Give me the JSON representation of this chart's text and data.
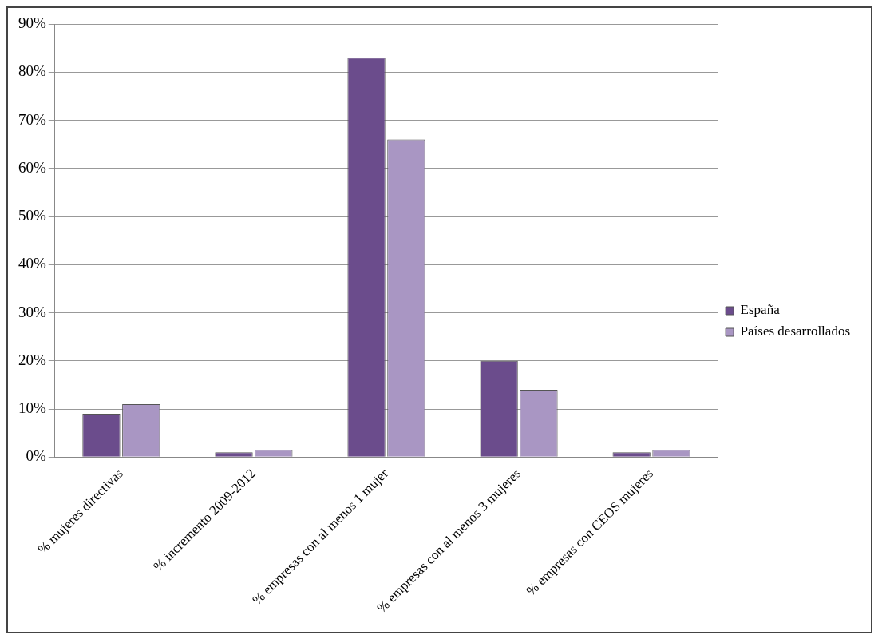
{
  "chart_data": {
    "type": "bar",
    "categories": [
      "% mujeres directivas",
      "% incremento 2009-2012",
      "% empresas con al menos 1 mujer",
      "% empresas con al menos 3 mujeres",
      "% empresas con CEOS mujeres"
    ],
    "series": [
      {
        "name": "España",
        "color": "#6b4c8c",
        "values": [
          9,
          1,
          83,
          20,
          1
        ]
      },
      {
        "name": "Países desarrollados",
        "color": "#a996c3",
        "values": [
          11,
          1.5,
          66,
          14,
          1.5
        ]
      }
    ],
    "ylim": [
      0,
      90
    ],
    "yticks": [
      {
        "value": 0,
        "label": "0%"
      },
      {
        "value": 10,
        "label": "10%"
      },
      {
        "value": 20,
        "label": "20%"
      },
      {
        "value": 30,
        "label": "30%"
      },
      {
        "value": 40,
        "label": "40%"
      },
      {
        "value": 50,
        "label": "50%"
      },
      {
        "value": 60,
        "label": "60%"
      },
      {
        "value": 70,
        "label": "70%"
      },
      {
        "value": 80,
        "label": "80%"
      },
      {
        "value": 90,
        "label": "90%"
      }
    ],
    "grid": "y",
    "legend": "right"
  }
}
